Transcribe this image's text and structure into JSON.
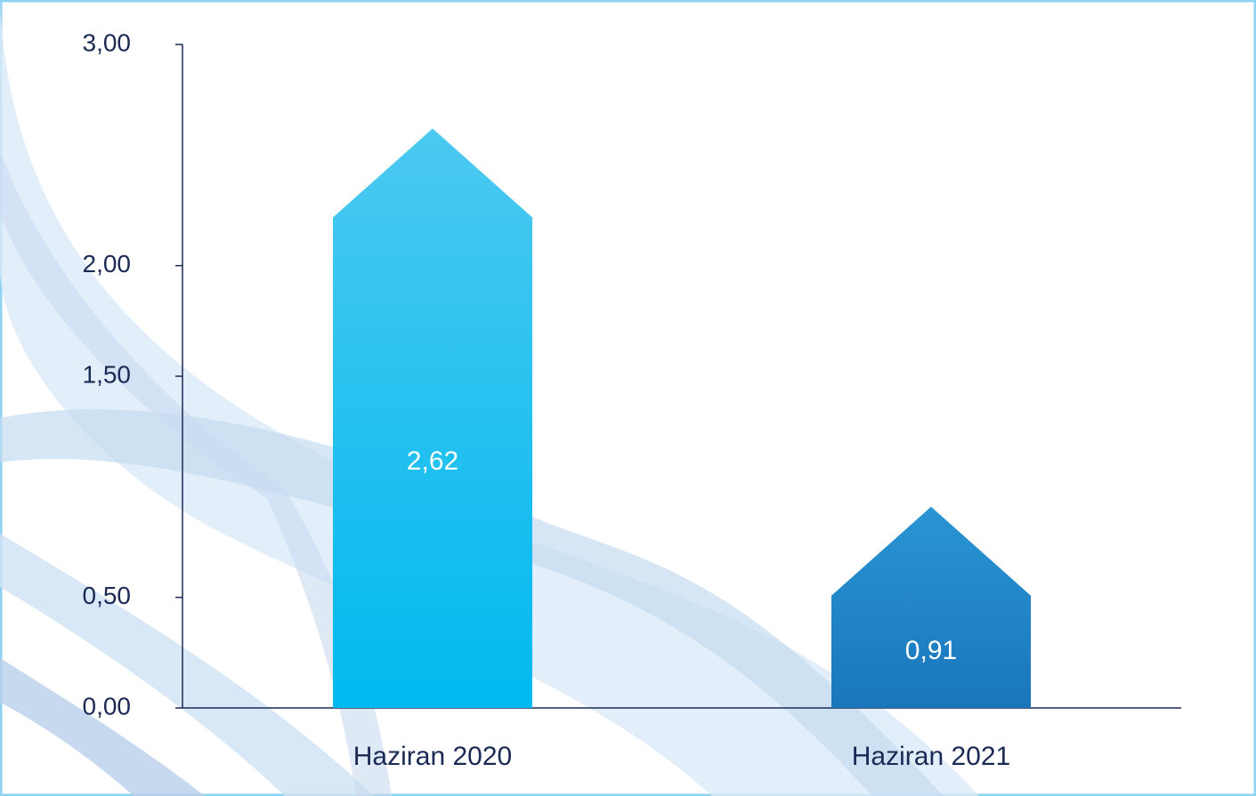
{
  "chart_data": {
    "type": "bar",
    "categories": [
      "Haziran 2020",
      "Haziran 2021"
    ],
    "values": [
      2.62,
      0.91
    ],
    "value_labels": [
      "2,62",
      "0,91"
    ],
    "colors": [
      "#1cc0f0",
      "#1f85c9"
    ],
    "ylim": [
      0,
      3
    ],
    "yticks": [
      {
        "value": 0,
        "label": "0,00"
      },
      {
        "value": 0.5,
        "label": "0,50"
      },
      {
        "value": 1.5,
        "label": "1,50"
      },
      {
        "value": 2,
        "label": "2,00"
      },
      {
        "value": 3,
        "label": "3,00"
      }
    ]
  }
}
